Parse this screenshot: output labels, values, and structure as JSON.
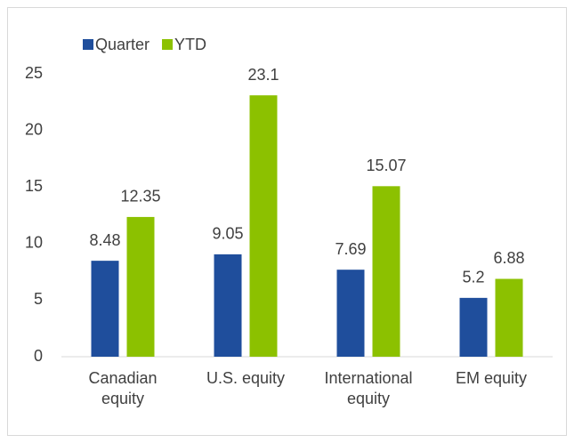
{
  "chart_data": {
    "type": "bar",
    "categories": [
      "Canadian equity",
      "U.S. equity",
      "International equity",
      "EM equity"
    ],
    "series": [
      {
        "name": "Quarter",
        "color": "#1f4e9c",
        "values": [
          8.48,
          9.05,
          7.69,
          5.2
        ]
      },
      {
        "name": "YTD",
        "color": "#8cc100",
        "values": [
          12.35,
          23.1,
          15.07,
          6.88
        ]
      }
    ],
    "ylim": [
      0,
      25
    ],
    "yticks": [
      0,
      5,
      10,
      15,
      20,
      25
    ],
    "grid": false,
    "legend": "top-left"
  }
}
